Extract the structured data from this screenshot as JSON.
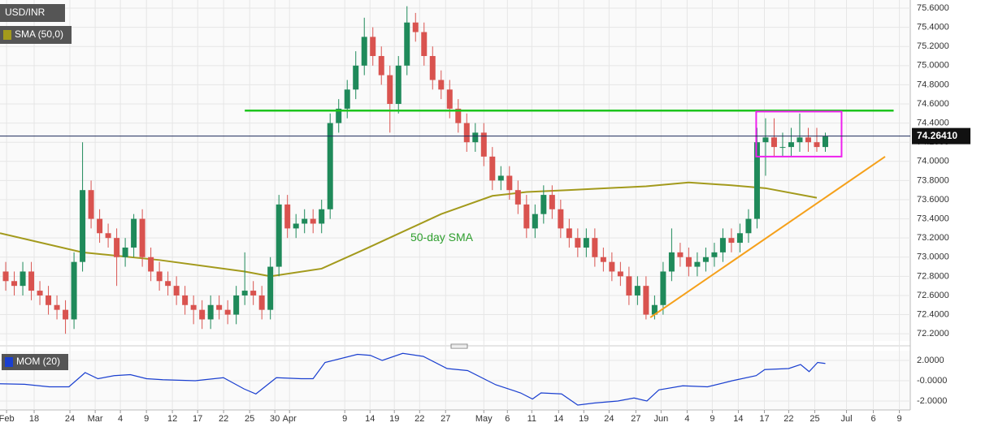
{
  "chart_data": [
    {
      "type": "candlestick",
      "title": "USD/INR",
      "xlim": [
        -0.67,
        105.95
      ],
      "xticks": [
        {
          "value": 0.1,
          "label": "Feb"
        },
        {
          "value": 3.33,
          "label": "18"
        },
        {
          "value": 7.52,
          "label": "24"
        },
        {
          "value": 10.48,
          "label": "Mar"
        },
        {
          "value": 13.43,
          "label": "4"
        },
        {
          "value": 16.48,
          "label": "9"
        },
        {
          "value": 19.52,
          "label": "12"
        },
        {
          "value": 22.48,
          "label": "17"
        },
        {
          "value": 25.52,
          "label": "22"
        },
        {
          "value": 28.57,
          "label": "25"
        },
        {
          "value": 31.52,
          "label": "30"
        },
        {
          "value": 33.24,
          "label": "Apr"
        },
        {
          "value": 39.71,
          "label": "9"
        },
        {
          "value": 42.67,
          "label": "14"
        },
        {
          "value": 45.52,
          "label": "19"
        },
        {
          "value": 48.48,
          "label": "22"
        },
        {
          "value": 51.52,
          "label": "27"
        },
        {
          "value": 56,
          "label": "May"
        },
        {
          "value": 58.76,
          "label": "6"
        },
        {
          "value": 61.62,
          "label": "11"
        },
        {
          "value": 64.76,
          "label": "14"
        },
        {
          "value": 67.71,
          "label": "19"
        },
        {
          "value": 70.67,
          "label": "24"
        },
        {
          "value": 73.81,
          "label": "27"
        },
        {
          "value": 76.76,
          "label": "Jun"
        },
        {
          "value": 79.81,
          "label": "4"
        },
        {
          "value": 82.76,
          "label": "9"
        },
        {
          "value": 85.81,
          "label": "14"
        },
        {
          "value": 88.86,
          "label": "17"
        },
        {
          "value": 91.71,
          "label": "22"
        },
        {
          "value": 94.76,
          "label": "25"
        },
        {
          "value": 98.48,
          "label": "Jul"
        },
        {
          "value": 101.62,
          "label": "6"
        },
        {
          "value": 104.67,
          "label": "9"
        }
      ],
      "ylim": [
        72.125,
        75.685
      ],
      "yticks": [
        {
          "value": 72.2,
          "label": "72.2000"
        },
        {
          "value": 72.4,
          "label": "72.4000"
        },
        {
          "value": 72.6,
          "label": "72.6000"
        },
        {
          "value": 72.8,
          "label": "72.8000"
        },
        {
          "value": 73,
          "label": "73.0000"
        },
        {
          "value": 73.2,
          "label": "73.2000"
        },
        {
          "value": 73.4,
          "label": "73.4000"
        },
        {
          "value": 73.6,
          "label": "73.6000"
        },
        {
          "value": 73.8,
          "label": "73.8000"
        },
        {
          "value": 74,
          "label": "74.0000"
        },
        {
          "value": 74.2,
          "label": "74.2000"
        },
        {
          "value": 74.4,
          "label": "74.4000"
        },
        {
          "value": 74.6,
          "label": "74.6000"
        },
        {
          "value": 74.8,
          "label": "74.8000"
        },
        {
          "value": 75,
          "label": "75.0000"
        },
        {
          "value": 75.2,
          "label": "75.2000"
        },
        {
          "value": 75.4,
          "label": "75.4000"
        },
        {
          "value": 75.6,
          "label": "75.6000"
        }
      ],
      "up_color": "#1f8a5a",
      "down_color": "#d9534f",
      "ohlc": [
        [
          72.85,
          72.95,
          72.65,
          72.75
        ],
        [
          72.75,
          72.85,
          72.6,
          72.7
        ],
        [
          72.7,
          72.95,
          72.6,
          72.85
        ],
        [
          72.85,
          72.95,
          72.55,
          72.65
        ],
        [
          72.65,
          72.75,
          72.5,
          72.6
        ],
        [
          72.6,
          72.7,
          72.4,
          72.5
        ],
        [
          72.5,
          72.6,
          72.35,
          72.45
        ],
        [
          72.45,
          72.55,
          72.2,
          72.35
        ],
        [
          72.35,
          73.05,
          72.25,
          72.95
        ],
        [
          72.95,
          74.2,
          72.85,
          73.7
        ],
        [
          73.7,
          73.8,
          73.3,
          73.4
        ],
        [
          73.4,
          73.5,
          73.15,
          73.25
        ],
        [
          73.25,
          73.35,
          73.1,
          73.2
        ],
        [
          73.2,
          73.3,
          72.7,
          73.0
        ],
        [
          73.0,
          73.2,
          72.9,
          73.1
        ],
        [
          73.1,
          73.45,
          73.0,
          73.4
        ],
        [
          73.4,
          73.5,
          72.9,
          73.0
        ],
        [
          73.0,
          73.1,
          72.75,
          72.85
        ],
        [
          72.85,
          72.95,
          72.65,
          72.75
        ],
        [
          72.75,
          72.85,
          72.6,
          72.7
        ],
        [
          72.7,
          72.8,
          72.5,
          72.6
        ],
        [
          72.6,
          72.7,
          72.4,
          72.5
        ],
        [
          72.5,
          72.6,
          72.3,
          72.45
        ],
        [
          72.45,
          72.55,
          72.25,
          72.35
        ],
        [
          72.35,
          72.6,
          72.25,
          72.5
        ],
        [
          72.5,
          72.6,
          72.35,
          72.45
        ],
        [
          72.45,
          72.55,
          72.3,
          72.4
        ],
        [
          72.4,
          72.7,
          72.3,
          72.6
        ],
        [
          72.6,
          73.05,
          72.5,
          72.65
        ],
        [
          72.65,
          72.75,
          72.5,
          72.6
        ],
        [
          72.6,
          72.7,
          72.35,
          72.45
        ],
        [
          72.45,
          73.0,
          72.35,
          72.9
        ],
        [
          72.9,
          73.65,
          72.8,
          73.55
        ],
        [
          73.55,
          73.65,
          73.2,
          73.3
        ],
        [
          73.3,
          73.45,
          73.2,
          73.35
        ],
        [
          73.35,
          73.5,
          73.25,
          73.4
        ],
        [
          73.4,
          73.5,
          73.25,
          73.35
        ],
        [
          73.35,
          73.6,
          73.25,
          73.5
        ],
        [
          73.5,
          74.5,
          73.4,
          74.4
        ],
        [
          74.4,
          74.65,
          74.3,
          74.55
        ],
        [
          74.55,
          74.85,
          74.45,
          74.75
        ],
        [
          74.75,
          75.15,
          74.65,
          75.0
        ],
        [
          75.0,
          75.5,
          74.9,
          75.3
        ],
        [
          75.3,
          75.4,
          75.0,
          75.1
        ],
        [
          75.1,
          75.2,
          74.8,
          74.9
        ],
        [
          74.9,
          75.0,
          74.3,
          74.6
        ],
        [
          74.6,
          75.1,
          74.5,
          75.0
        ],
        [
          75.0,
          75.62,
          74.9,
          75.45
        ],
        [
          75.45,
          75.55,
          75.25,
          75.35
        ],
        [
          75.35,
          75.45,
          75.0,
          75.1
        ],
        [
          75.1,
          75.2,
          74.75,
          74.85
        ],
        [
          74.85,
          74.95,
          74.65,
          74.75
        ],
        [
          74.75,
          74.85,
          74.45,
          74.55
        ],
        [
          74.55,
          74.65,
          74.3,
          74.4
        ],
        [
          74.4,
          74.5,
          74.1,
          74.2
        ],
        [
          74.2,
          74.4,
          74.1,
          74.3
        ],
        [
          74.3,
          74.4,
          73.95,
          74.05
        ],
        [
          74.05,
          74.15,
          73.7,
          73.8
        ],
        [
          73.8,
          73.95,
          73.7,
          73.85
        ],
        [
          73.85,
          73.95,
          73.6,
          73.7
        ],
        [
          73.7,
          73.8,
          73.45,
          73.55
        ],
        [
          73.55,
          73.65,
          73.2,
          73.3
        ],
        [
          73.3,
          73.55,
          73.2,
          73.45
        ],
        [
          73.45,
          73.75,
          73.35,
          73.65
        ],
        [
          73.65,
          73.75,
          73.4,
          73.5
        ],
        [
          73.5,
          73.6,
          73.2,
          73.3
        ],
        [
          73.3,
          73.4,
          73.1,
          73.2
        ],
        [
          73.2,
          73.3,
          73.0,
          73.1
        ],
        [
          73.1,
          73.3,
          73.0,
          73.2
        ],
        [
          73.2,
          73.3,
          72.9,
          73.0
        ],
        [
          73.0,
          73.1,
          72.85,
          72.95
        ],
        [
          72.95,
          73.05,
          72.75,
          72.85
        ],
        [
          72.85,
          72.95,
          72.7,
          72.8
        ],
        [
          72.8,
          72.9,
          72.5,
          72.6
        ],
        [
          72.6,
          72.8,
          72.5,
          72.7
        ],
        [
          72.7,
          72.8,
          72.35,
          72.4
        ],
        [
          72.4,
          72.6,
          72.35,
          72.5
        ],
        [
          72.5,
          72.95,
          72.4,
          72.85
        ],
        [
          72.85,
          73.3,
          72.75,
          73.05
        ],
        [
          73.05,
          73.15,
          72.9,
          73.0
        ],
        [
          73.0,
          73.1,
          72.8,
          72.9
        ],
        [
          72.9,
          73.05,
          72.8,
          72.95
        ],
        [
          72.95,
          73.1,
          72.85,
          73.0
        ],
        [
          73.0,
          73.15,
          72.9,
          73.05
        ],
        [
          73.05,
          73.3,
          72.95,
          73.2
        ],
        [
          73.2,
          73.3,
          73.05,
          73.15
        ],
        [
          73.15,
          73.35,
          73.05,
          73.25
        ],
        [
          73.25,
          73.5,
          73.15,
          73.4
        ],
        [
          73.4,
          74.35,
          73.3,
          74.2
        ],
        [
          74.2,
          74.45,
          73.85,
          74.25
        ],
        [
          74.25,
          74.45,
          74.05,
          74.15
        ],
        [
          74.15,
          74.3,
          74.05,
          74.15
        ],
        [
          74.15,
          74.35,
          74.05,
          74.2
        ],
        [
          74.2,
          74.5,
          74.1,
          74.25
        ],
        [
          74.25,
          74.35,
          74.1,
          74.2
        ],
        [
          74.2,
          74.35,
          74.1,
          74.15
        ],
        [
          74.15,
          74.3,
          74.1,
          74.26
        ]
      ],
      "sma": {
        "name": "SMA (50,0)",
        "color": "#a39a1c",
        "x": [
          -0.67,
          9,
          18,
          28,
          31,
          37,
          42,
          51,
          57,
          61,
          66,
          75,
          80,
          85,
          89,
          95
        ],
        "values": [
          73.25,
          73.05,
          72.97,
          72.85,
          72.8,
          72.88,
          73.08,
          73.45,
          73.64,
          73.68,
          73.7,
          73.74,
          73.78,
          73.75,
          73.72,
          73.62
        ]
      },
      "annotation": {
        "text": "50-day SMA",
        "x": 47.4,
        "y": 73.2,
        "color": "#2e9e2e"
      },
      "resistance": {
        "color": "#1ec41e",
        "x": [
          28,
          104
        ],
        "y": [
          74.53,
          74.53
        ]
      },
      "support": {
        "color": "#f5a01a",
        "x": [
          75.5,
          103
        ],
        "y": [
          72.37,
          74.05
        ]
      },
      "box": {
        "color": "#ee22ee",
        "x": [
          87.9,
          97.9
        ],
        "y": [
          74.05,
          74.52
        ]
      },
      "last_price": {
        "value": 74.2641,
        "label": "74.26410"
      }
    },
    {
      "type": "line",
      "title": "MOM (20)",
      "color": "#1a3fd0",
      "ylim": [
        -2.88,
        2.96
      ],
      "yticks": [
        {
          "value": 2,
          "label": "2.0000"
        },
        {
          "value": 0,
          "label": "-0.0000"
        },
        {
          "value": -2,
          "label": "-2.0000"
        }
      ],
      "x": [
        -0.67,
        2.2,
        5.1,
        7.4,
        8.9,
        9.3,
        10.8,
        12.7,
        14.6,
        16.5,
        18.4,
        22.2,
        25.5,
        27.9,
        29.3,
        31.7,
        34.6,
        36,
        37.4,
        41.2,
        42.7,
        44.1,
        46.5,
        48.9,
        51.7,
        54.1,
        57.4,
        60.3,
        61.7,
        62.7,
        65.1,
        67,
        68.9,
        71.7,
        73.6,
        75.1,
        76.5,
        79.3,
        82.2,
        85.1,
        87.9,
        88.9,
        91.7,
        93.1,
        94.1,
        95.1,
        96
      ],
      "values": [
        -0.3,
        -0.35,
        -0.6,
        -0.6,
        0.5,
        0.8,
        0.2,
        0.5,
        0.6,
        0.2,
        0.1,
        0.0,
        0.3,
        -0.8,
        -1.3,
        0.3,
        0.2,
        0.2,
        1.8,
        2.6,
        2.5,
        2.0,
        2.7,
        2.4,
        1.2,
        1.0,
        -0.4,
        -1.2,
        -1.8,
        -1.2,
        -1.3,
        -2.4,
        -2.2,
        -2.0,
        -1.7,
        -2.0,
        -0.9,
        -0.5,
        -0.6,
        0.0,
        0.5,
        1.1,
        1.2,
        1.6,
        0.9,
        1.8,
        1.7
      ]
    }
  ]
}
